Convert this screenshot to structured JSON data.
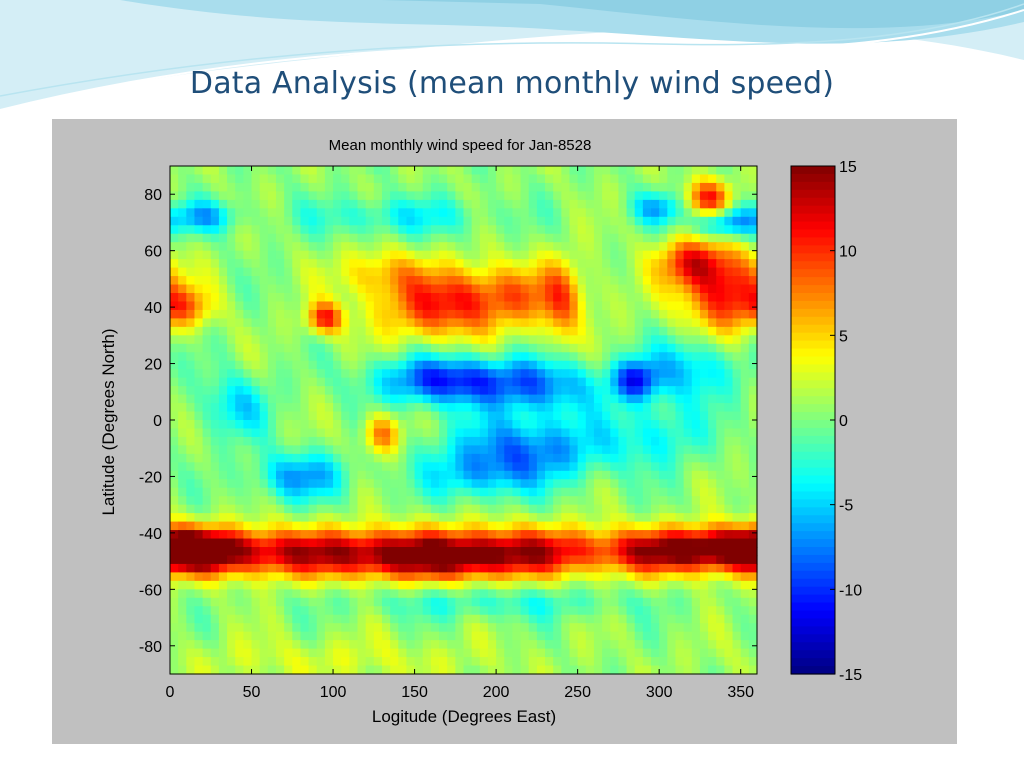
{
  "slide": {
    "title": "Data Analysis (mean monthly wind speed)"
  },
  "colors": {
    "title_text": "#1f4e79",
    "figure_background": "#c0c0c0",
    "slide_wave_light": "#d4eef6",
    "slide_wave_mid": "#8fd0e4"
  },
  "chart_data": {
    "type": "heatmap",
    "title": "Mean monthly wind speed for Jan-8528",
    "xlabel": "Logitude (Degrees East)",
    "ylabel": "Latitude (Degrees North)",
    "xlim": [
      0,
      360
    ],
    "ylim": [
      -90,
      90
    ],
    "x_ticks": [
      0,
      50,
      100,
      150,
      200,
      250,
      300,
      350
    ],
    "y_ticks": [
      80,
      60,
      40,
      20,
      0,
      -20,
      -40,
      -60,
      -80
    ],
    "colorbar": {
      "colormap": "jet",
      "range": [
        -15,
        15
      ],
      "ticks": [
        15,
        10,
        5,
        0,
        -5,
        -10,
        -15
      ]
    },
    "grid": false,
    "base_value": 0.5,
    "features": [
      {
        "lon": 80,
        "lat": -47,
        "value": 12,
        "lon_spread": 90,
        "lat_spread": 6
      },
      {
        "lon": 15,
        "lat": -46,
        "value": 10,
        "lon_spread": 20,
        "lat_spread": 5
      },
      {
        "lon": 230,
        "lat": -46,
        "value": 8,
        "lon_spread": 60,
        "lat_spread": 6
      },
      {
        "lon": 340,
        "lat": -45,
        "value": 9,
        "lon_spread": 25,
        "lat_spread": 5
      },
      {
        "lon": 300,
        "lat": -47,
        "value": 5,
        "lon_spread": 20,
        "lat_spread": 5
      },
      {
        "lon": 170,
        "lat": -50,
        "value": 6,
        "lon_spread": 40,
        "lat_spread": 5
      },
      {
        "lon": 200,
        "lat": 44,
        "value": 8,
        "lon_spread": 35,
        "lat_spread": 8
      },
      {
        "lon": 160,
        "lat": 38,
        "value": 6,
        "lon_spread": 25,
        "lat_spread": 8
      },
      {
        "lon": 340,
        "lat": 45,
        "value": 11,
        "lon_spread": 18,
        "lat_spread": 10
      },
      {
        "lon": 320,
        "lat": 56,
        "value": 9,
        "lon_spread": 15,
        "lat_spread": 6
      },
      {
        "lon": 330,
        "lat": 78,
        "value": 10,
        "lon_spread": 10,
        "lat_spread": 5
      },
      {
        "lon": 95,
        "lat": 36,
        "value": 10,
        "lon_spread": 8,
        "lat_spread": 4
      },
      {
        "lon": 10,
        "lat": 40,
        "value": 6,
        "lon_spread": 12,
        "lat_spread": 5
      },
      {
        "lon": 130,
        "lat": -5,
        "value": 8,
        "lon_spread": 8,
        "lat_spread": 5
      },
      {
        "lon": 130,
        "lat": 52,
        "value": 5,
        "lon_spread": 20,
        "lat_spread": 6
      },
      {
        "lon": 240,
        "lat": 40,
        "value": 5,
        "lon_spread": 8,
        "lat_spread": 12
      },
      {
        "lon": 340,
        "lat": 70,
        "value": -9,
        "lon_spread": 14,
        "lat_spread": 4
      },
      {
        "lon": 300,
        "lat": 75,
        "value": -6,
        "lon_spread": 12,
        "lat_spread": 4
      },
      {
        "lon": 170,
        "lat": 14,
        "value": -11,
        "lon_spread": 30,
        "lat_spread": 6
      },
      {
        "lon": 230,
        "lat": 12,
        "value": -7,
        "lon_spread": 25,
        "lat_spread": 7
      },
      {
        "lon": 285,
        "lat": 14,
        "value": -10,
        "lon_spread": 10,
        "lat_spread": 5
      },
      {
        "lon": 320,
        "lat": 18,
        "value": -6,
        "lon_spread": 20,
        "lat_spread": 8
      },
      {
        "lon": 220,
        "lat": -10,
        "value": -8,
        "lon_spread": 35,
        "lat_spread": 8
      },
      {
        "lon": 80,
        "lat": -20,
        "value": -7,
        "lon_spread": 20,
        "lat_spread": 6
      },
      {
        "lon": 190,
        "lat": -20,
        "value": -5,
        "lon_spread": 25,
        "lat_spread": 6
      },
      {
        "lon": 40,
        "lat": 5,
        "value": -5,
        "lon_spread": 15,
        "lat_spread": 8
      },
      {
        "lon": 300,
        "lat": -5,
        "value": -4,
        "lon_spread": 20,
        "lat_spread": 8
      },
      {
        "lon": 20,
        "lat": 72,
        "value": -6,
        "lon_spread": 15,
        "lat_spread": 4
      },
      {
        "lon": 140,
        "lat": 72,
        "value": -4,
        "lon_spread": 40,
        "lat_spread": 5
      },
      {
        "lon": 200,
        "lat": -65,
        "value": -3,
        "lon_spread": 60,
        "lat_spread": 4
      },
      {
        "lon": 100,
        "lat": -85,
        "value": 2,
        "lon_spread": 80,
        "lat_spread": 6
      }
    ]
  }
}
